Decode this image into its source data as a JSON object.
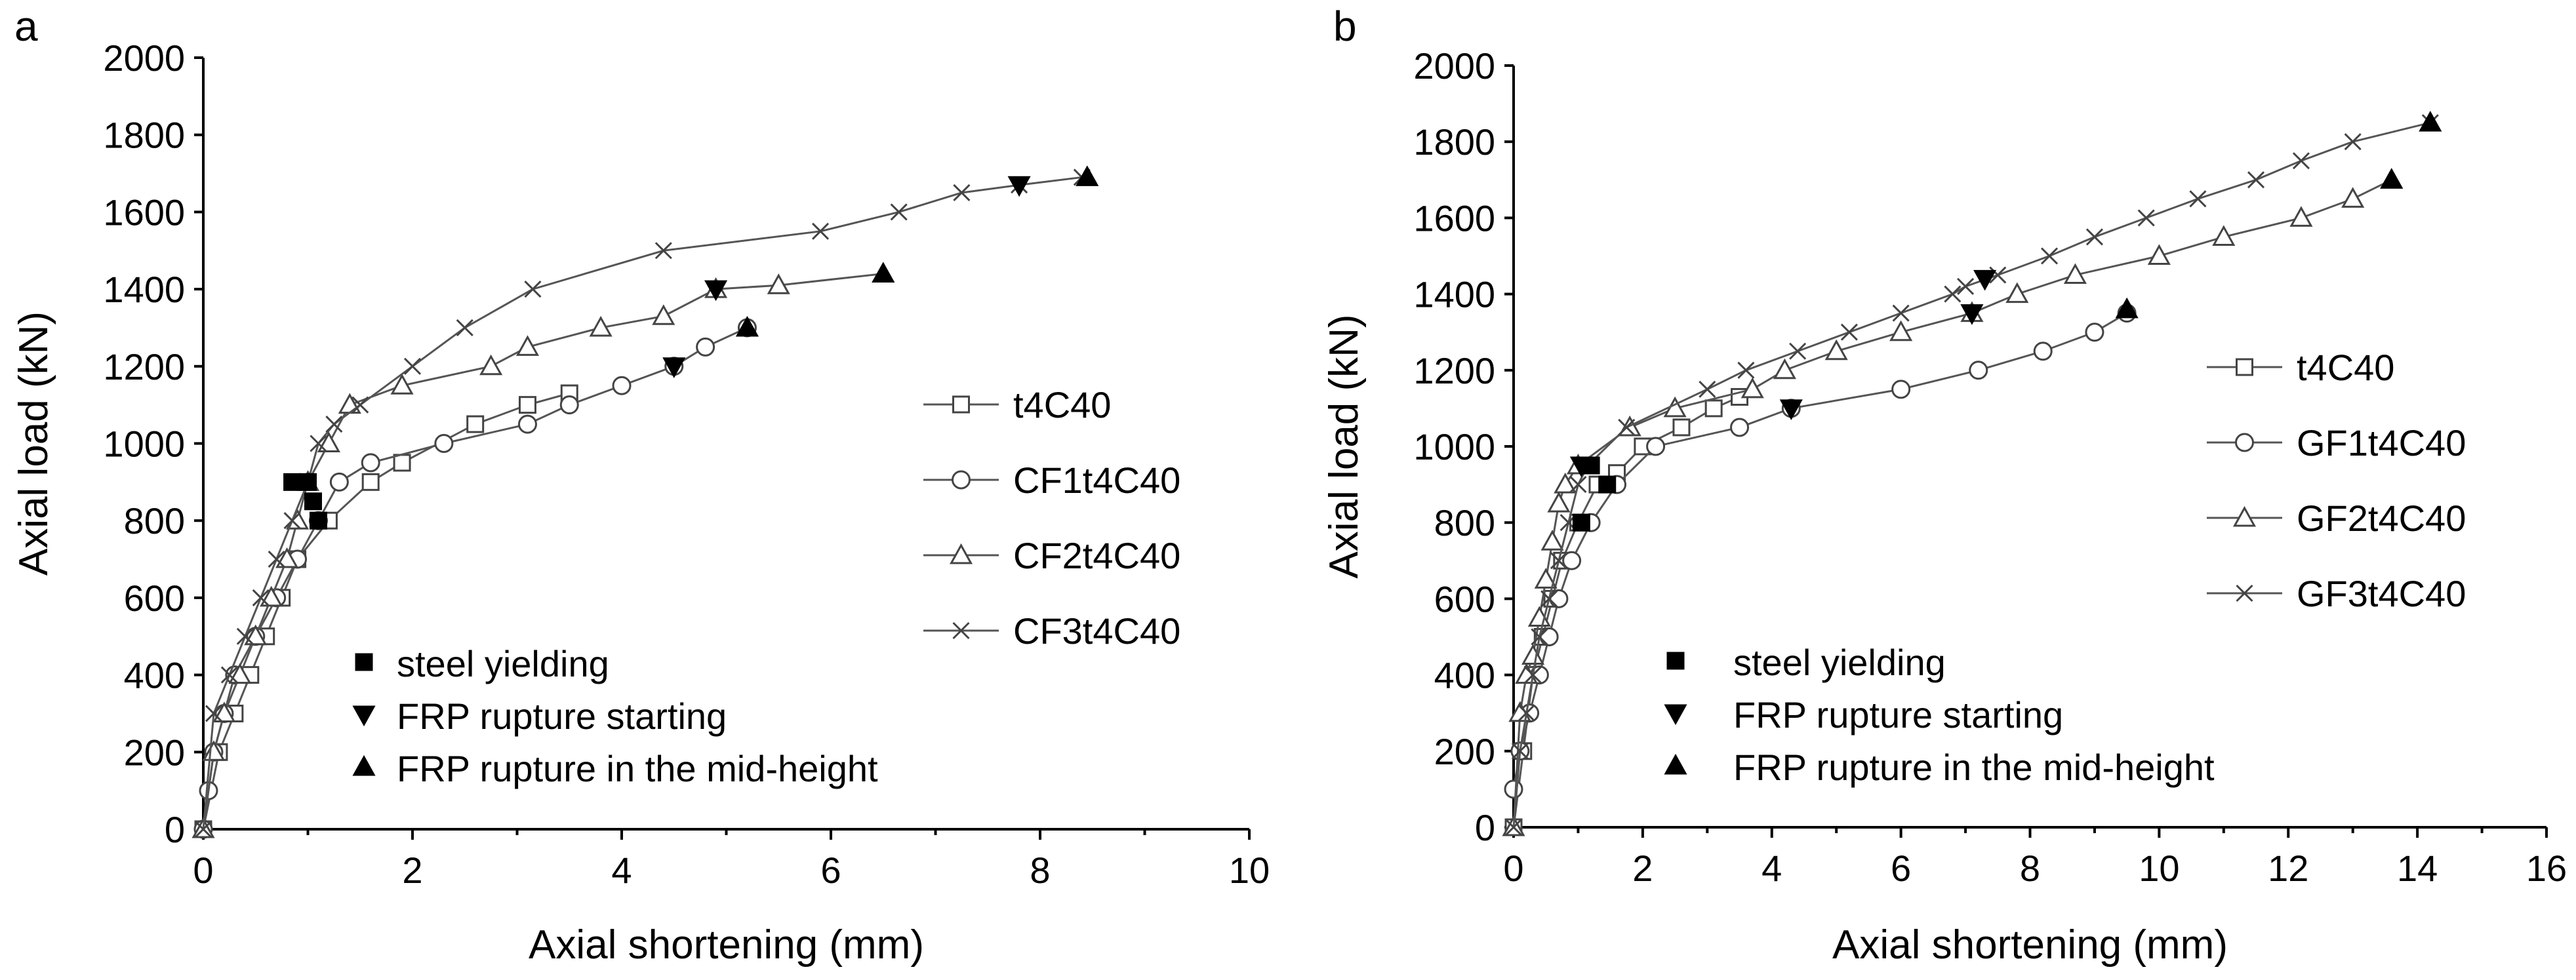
{
  "chart_data": [
    {
      "type": "line",
      "panel_label": "a",
      "xlabel": "Axial shortening (mm)",
      "ylabel": "Axial load (kN)",
      "xlim": [
        0,
        10
      ],
      "ylim": [
        0,
        2000
      ],
      "xticks": [
        0,
        2,
        4,
        6,
        8,
        10
      ],
      "yticks": [
        0,
        200,
        400,
        600,
        800,
        1000,
        1200,
        1400,
        1600,
        1800,
        2000
      ],
      "grid": false,
      "legend_position": "center-right",
      "series": [
        {
          "name": "t4C40",
          "marker": "square",
          "x": [
            0,
            0.15,
            0.3,
            0.45,
            0.6,
            0.75,
            0.9,
            1.2,
            1.6,
            1.9,
            2.6,
            3.1,
            3.5
          ],
          "y": [
            0,
            200,
            300,
            400,
            500,
            600,
            700,
            800,
            900,
            950,
            1050,
            1100,
            1130
          ]
        },
        {
          "name": "CF1t4C40",
          "marker": "circle",
          "x": [
            0,
            0.05,
            0.1,
            0.2,
            0.3,
            0.5,
            0.7,
            0.9,
            1.1,
            1.3,
            1.6,
            2.3,
            3.1,
            3.5,
            4.0,
            4.5,
            4.8,
            5.2
          ],
          "y": [
            0,
            100,
            200,
            300,
            400,
            500,
            600,
            700,
            800,
            900,
            950,
            1000,
            1050,
            1100,
            1150,
            1200,
            1250,
            1300
          ]
        },
        {
          "name": "CF2t4C40",
          "marker": "triangle",
          "x": [
            0,
            0.1,
            0.2,
            0.35,
            0.5,
            0.65,
            0.8,
            0.9,
            1.0,
            1.2,
            1.4,
            1.9,
            2.75,
            3.1,
            3.8,
            4.4,
            4.9,
            5.5,
            6.5
          ],
          "y": [
            0,
            200,
            300,
            400,
            500,
            600,
            700,
            800,
            900,
            1000,
            1100,
            1150,
            1200,
            1250,
            1300,
            1330,
            1400,
            1410,
            1440
          ]
        },
        {
          "name": "CF3t4C40",
          "marker": "x",
          "x": [
            0,
            0.1,
            0.25,
            0.4,
            0.55,
            0.7,
            0.85,
            1.0,
            1.1,
            1.25,
            1.5,
            2.0,
            2.5,
            3.15,
            4.4,
            5.9,
            6.65,
            7.25,
            7.8,
            8.4
          ],
          "y": [
            0,
            300,
            400,
            500,
            600,
            700,
            800,
            900,
            1000,
            1050,
            1100,
            1200,
            1300,
            1400,
            1500,
            1550,
            1600,
            1650,
            1670,
            1690
          ]
        }
      ],
      "events": [
        {
          "type": "steel-yielding",
          "x": 0.85,
          "y": 900
        },
        {
          "type": "steel-yielding",
          "x": 1.0,
          "y": 900
        },
        {
          "type": "steel-yielding",
          "x": 1.05,
          "y": 850
        },
        {
          "type": "steel-yielding",
          "x": 1.1,
          "y": 800
        },
        {
          "type": "frp-rupture-starting",
          "x": 4.5,
          "y": 1200
        },
        {
          "type": "frp-rupture-starting",
          "x": 4.9,
          "y": 1400
        },
        {
          "type": "frp-rupture-starting",
          "x": 7.8,
          "y": 1670
        },
        {
          "type": "frp-rupture-mid-height",
          "x": 5.2,
          "y": 1300
        },
        {
          "type": "frp-rupture-mid-height",
          "x": 6.5,
          "y": 1440
        },
        {
          "type": "frp-rupture-mid-height",
          "x": 8.45,
          "y": 1690
        }
      ],
      "legend_series": [
        "t4C40",
        "CF1t4C40",
        "CF2t4C40",
        "CF3t4C40"
      ],
      "legend_events": [
        "steel yielding",
        "FRP rupture starting",
        "FRP rupture in the mid-height"
      ]
    },
    {
      "type": "line",
      "panel_label": "b",
      "xlabel": "Axial shortening (mm)",
      "ylabel": "Axial load (kN)",
      "xlim": [
        0,
        16
      ],
      "ylim": [
        0,
        2000
      ],
      "xticks": [
        0,
        2,
        4,
        6,
        8,
        10,
        12,
        14,
        16
      ],
      "yticks": [
        0,
        200,
        400,
        600,
        800,
        1000,
        1200,
        1400,
        1600,
        1800,
        2000
      ],
      "grid": false,
      "legend_position": "center-right",
      "series": [
        {
          "name": "t4C40",
          "marker": "square",
          "x": [
            0,
            0.15,
            0.3,
            0.45,
            0.6,
            0.75,
            1.0,
            1.3,
            1.6,
            2.0,
            2.6,
            3.1,
            3.5
          ],
          "y": [
            0,
            200,
            400,
            500,
            600,
            700,
            800,
            900,
            930,
            1000,
            1050,
            1100,
            1130
          ]
        },
        {
          "name": "GF1t4C40",
          "marker": "circle",
          "x": [
            0,
            0.1,
            0.25,
            0.4,
            0.55,
            0.7,
            0.9,
            1.2,
            1.6,
            2.2,
            3.5,
            4.3,
            6.0,
            7.2,
            8.2,
            9.0,
            9.5
          ],
          "y": [
            100,
            200,
            300,
            400,
            500,
            600,
            700,
            800,
            900,
            1000,
            1050,
            1100,
            1150,
            1200,
            1250,
            1300,
            1350
          ]
        },
        {
          "name": "GF2t4C40",
          "marker": "triangle",
          "x": [
            0,
            0.1,
            0.2,
            0.3,
            0.4,
            0.5,
            0.6,
            0.7,
            0.8,
            1.0,
            1.8,
            2.5,
            3.7,
            4.2,
            5.0,
            6.0,
            7.1,
            7.8,
            8.7,
            10.0,
            11.0,
            12.2,
            13.0,
            13.6
          ],
          "y": [
            0,
            300,
            400,
            450,
            550,
            650,
            750,
            850,
            900,
            950,
            1050,
            1100,
            1150,
            1200,
            1250,
            1300,
            1350,
            1400,
            1450,
            1500,
            1550,
            1600,
            1650,
            1700
          ]
        },
        {
          "name": "GF3t4C40",
          "marker": "x",
          "x": [
            0,
            0.1,
            0.2,
            0.3,
            0.4,
            0.55,
            0.7,
            0.85,
            1.0,
            1.15,
            1.75,
            3.0,
            3.6,
            4.4,
            5.2,
            6.0,
            6.8,
            7.0,
            7.5,
            8.3,
            9.0,
            9.8,
            10.6,
            11.5,
            12.2,
            13.0,
            14.2
          ],
          "y": [
            0,
            200,
            300,
            400,
            500,
            600,
            700,
            800,
            900,
            950,
            1050,
            1150,
            1200,
            1250,
            1300,
            1350,
            1400,
            1420,
            1450,
            1500,
            1550,
            1600,
            1650,
            1700,
            1750,
            1800,
            1850
          ]
        }
      ],
      "events": [
        {
          "type": "steel-yielding",
          "x": 1.05,
          "y": 800
        },
        {
          "type": "steel-yielding",
          "x": 1.45,
          "y": 900
        },
        {
          "type": "steel-yielding",
          "x": 1.2,
          "y": 950
        },
        {
          "type": "frp-rupture-starting",
          "x": 1.05,
          "y": 950
        },
        {
          "type": "frp-rupture-starting",
          "x": 4.3,
          "y": 1100
        },
        {
          "type": "frp-rupture-starting",
          "x": 7.1,
          "y": 1350
        },
        {
          "type": "frp-rupture-starting",
          "x": 7.3,
          "y": 1440
        },
        {
          "type": "frp-rupture-mid-height",
          "x": 9.5,
          "y": 1360
        },
        {
          "type": "frp-rupture-mid-height",
          "x": 13.6,
          "y": 1700
        },
        {
          "type": "frp-rupture-mid-height",
          "x": 14.2,
          "y": 1850
        }
      ],
      "legend_series": [
        "t4C40",
        "GF1t4C40",
        "GF2t4C40",
        "GF3t4C40"
      ],
      "legend_events": [
        "steel yielding",
        "FRP rupture starting",
        "FRP rupture in the mid-height"
      ]
    }
  ],
  "colors": {
    "line": "#555555",
    "marker": "#444444",
    "event": "#000000"
  },
  "icons": {
    "steel-yielding": "filled-square-icon",
    "frp-rupture-starting": "filled-down-triangle-icon",
    "frp-rupture-mid-height": "filled-up-triangle-icon"
  }
}
